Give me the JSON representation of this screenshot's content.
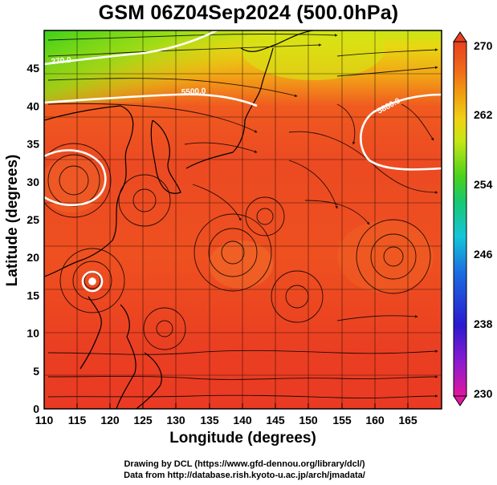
{
  "title": "GSM 06Z04Sep2024 (500.0hPa)",
  "xaxis": {
    "label": "Longitude (degrees)",
    "ticks": [
      "110",
      "115",
      "120",
      "125",
      "130",
      "135",
      "140",
      "145",
      "150",
      "155",
      "160",
      "165"
    ],
    "range": [
      110,
      170
    ]
  },
  "yaxis": {
    "label": "Latitude  (degrees)",
    "ticks": [
      "0",
      "5",
      "10",
      "15",
      "20",
      "25",
      "30",
      "35",
      "40",
      "45"
    ],
    "range": [
      0,
      50
    ]
  },
  "colorbar": {
    "ticks": [
      "270",
      "262",
      "254",
      "246",
      "238",
      "230"
    ],
    "range": [
      230,
      270
    ],
    "colors": [
      "#e0189e",
      "#8a1ad0",
      "#2a1ad0",
      "#1a6ee0",
      "#14c6d8",
      "#18c870",
      "#4ad21a",
      "#c6e616",
      "#f0d214",
      "#f0a012",
      "#f06a1a",
      "#e8401e"
    ]
  },
  "contours": [
    {
      "label": "270.0"
    },
    {
      "label": "5500.0"
    },
    {
      "label": "5880.0"
    }
  ],
  "credits": {
    "line1": "Drawing by DCL (https://www.gfd-dennou.org/library/dcl/)",
    "line2": "Data from http://database.rish.kyoto-u.ac.jp/arch/jmadata/"
  }
}
